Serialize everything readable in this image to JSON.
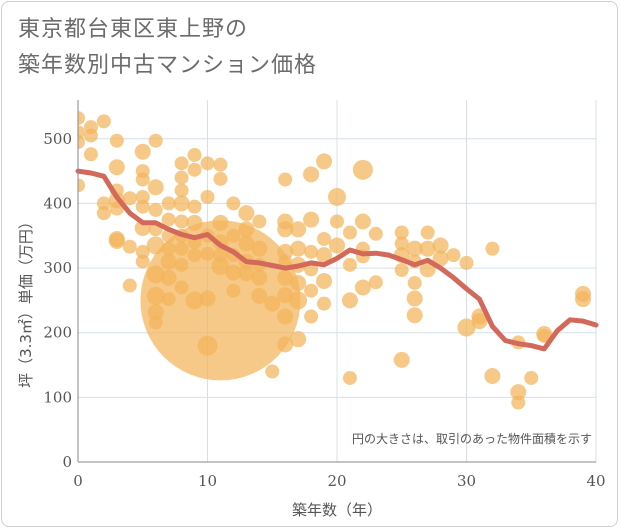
{
  "title": {
    "line1": "東京都台東区東上野の",
    "line2": "築年数別中古マンション価格"
  },
  "note": "円の大きさは、取引のあった物件面積を示す",
  "colors": {
    "bubble": "#f2b45a",
    "line": "#d2695a",
    "grid": "#d5e0ea",
    "axis": "#888888"
  },
  "chart_data": {
    "type": "scatter",
    "xlabel": "築年数（年）",
    "ylabel": "坪（3.3㎡）単価（万円）",
    "xlim": [
      0,
      40
    ],
    "ylim": [
      0,
      560
    ],
    "xticks": [
      0,
      10,
      20,
      30,
      40
    ],
    "yticks": [
      0,
      100,
      200,
      300,
      400,
      500
    ],
    "grid": true,
    "bubbles": [
      {
        "x": 0,
        "y": 532,
        "r": 7
      },
      {
        "x": 0,
        "y": 510,
        "r": 7
      },
      {
        "x": 0,
        "y": 495,
        "r": 7
      },
      {
        "x": 0,
        "y": 428,
        "r": 7
      },
      {
        "x": 1,
        "y": 518,
        "r": 7
      },
      {
        "x": 1,
        "y": 505,
        "r": 7
      },
      {
        "x": 1,
        "y": 476,
        "r": 7
      },
      {
        "x": 2,
        "y": 527,
        "r": 7
      },
      {
        "x": 2,
        "y": 400,
        "r": 7
      },
      {
        "x": 2,
        "y": 385,
        "r": 7
      },
      {
        "x": 3,
        "y": 497,
        "r": 7
      },
      {
        "x": 3,
        "y": 456,
        "r": 8
      },
      {
        "x": 3,
        "y": 420,
        "r": 7
      },
      {
        "x": 3,
        "y": 405,
        "r": 8
      },
      {
        "x": 3,
        "y": 392,
        "r": 7
      },
      {
        "x": 3,
        "y": 345,
        "r": 8
      },
      {
        "x": 3,
        "y": 342,
        "r": 8
      },
      {
        "x": 4,
        "y": 408,
        "r": 7
      },
      {
        "x": 4,
        "y": 333,
        "r": 7
      },
      {
        "x": 4,
        "y": 273,
        "r": 7
      },
      {
        "x": 5,
        "y": 480,
        "r": 8
      },
      {
        "x": 5,
        "y": 450,
        "r": 7
      },
      {
        "x": 5,
        "y": 437,
        "r": 7
      },
      {
        "x": 5,
        "y": 410,
        "r": 7
      },
      {
        "x": 5,
        "y": 395,
        "r": 7
      },
      {
        "x": 5,
        "y": 362,
        "r": 8
      },
      {
        "x": 5,
        "y": 325,
        "r": 7
      },
      {
        "x": 5,
        "y": 310,
        "r": 7
      },
      {
        "x": 6,
        "y": 497,
        "r": 7
      },
      {
        "x": 6,
        "y": 425,
        "r": 8
      },
      {
        "x": 6,
        "y": 390,
        "r": 7
      },
      {
        "x": 6,
        "y": 360,
        "r": 7
      },
      {
        "x": 6,
        "y": 335,
        "r": 9
      },
      {
        "x": 6,
        "y": 290,
        "r": 9
      },
      {
        "x": 6,
        "y": 257,
        "r": 9
      },
      {
        "x": 6,
        "y": 232,
        "r": 8
      },
      {
        "x": 6,
        "y": 216,
        "r": 7
      },
      {
        "x": 7,
        "y": 400,
        "r": 7
      },
      {
        "x": 7,
        "y": 375,
        "r": 7
      },
      {
        "x": 7,
        "y": 350,
        "r": 7
      },
      {
        "x": 7,
        "y": 330,
        "r": 7
      },
      {
        "x": 7,
        "y": 310,
        "r": 8
      },
      {
        "x": 7,
        "y": 285,
        "r": 8
      },
      {
        "x": 7,
        "y": 252,
        "r": 7
      },
      {
        "x": 8,
        "y": 462,
        "r": 7
      },
      {
        "x": 8,
        "y": 440,
        "r": 7
      },
      {
        "x": 8,
        "y": 420,
        "r": 7
      },
      {
        "x": 8,
        "y": 400,
        "r": 8
      },
      {
        "x": 8,
        "y": 372,
        "r": 7
      },
      {
        "x": 8,
        "y": 350,
        "r": 7
      },
      {
        "x": 8,
        "y": 330,
        "r": 7
      },
      {
        "x": 8,
        "y": 305,
        "r": 7
      },
      {
        "x": 8,
        "y": 270,
        "r": 7
      },
      {
        "x": 9,
        "y": 475,
        "r": 7
      },
      {
        "x": 9,
        "y": 452,
        "r": 7
      },
      {
        "x": 9,
        "y": 395,
        "r": 7
      },
      {
        "x": 9,
        "y": 370,
        "r": 8
      },
      {
        "x": 9,
        "y": 340,
        "r": 7
      },
      {
        "x": 9,
        "y": 320,
        "r": 7
      },
      {
        "x": 9,
        "y": 250,
        "r": 9
      },
      {
        "x": 10,
        "y": 462,
        "r": 7
      },
      {
        "x": 10,
        "y": 410,
        "r": 7
      },
      {
        "x": 10,
        "y": 350,
        "r": 7
      },
      {
        "x": 10,
        "y": 322,
        "r": 7
      },
      {
        "x": 10,
        "y": 253,
        "r": 8
      },
      {
        "x": 10,
        "y": 180,
        "r": 10
      },
      {
        "x": 11,
        "y": 460,
        "r": 7
      },
      {
        "x": 11,
        "y": 438,
        "r": 7
      },
      {
        "x": 11,
        "y": 370,
        "r": 8
      },
      {
        "x": 11,
        "y": 340,
        "r": 8
      },
      {
        "x": 11,
        "y": 320,
        "r": 7
      },
      {
        "x": 11,
        "y": 303,
        "r": 9
      },
      {
        "x": 11,
        "y": 250,
        "r": 80
      },
      {
        "x": 12,
        "y": 400,
        "r": 7
      },
      {
        "x": 12,
        "y": 350,
        "r": 7
      },
      {
        "x": 12,
        "y": 320,
        "r": 7
      },
      {
        "x": 12,
        "y": 293,
        "r": 8
      },
      {
        "x": 12,
        "y": 265,
        "r": 7
      },
      {
        "x": 13,
        "y": 385,
        "r": 8
      },
      {
        "x": 13,
        "y": 360,
        "r": 8
      },
      {
        "x": 13,
        "y": 338,
        "r": 8
      },
      {
        "x": 13,
        "y": 310,
        "r": 8
      },
      {
        "x": 13,
        "y": 292,
        "r": 8
      },
      {
        "x": 14,
        "y": 372,
        "r": 7
      },
      {
        "x": 14,
        "y": 330,
        "r": 8
      },
      {
        "x": 14,
        "y": 305,
        "r": 7
      },
      {
        "x": 14,
        "y": 285,
        "r": 8
      },
      {
        "x": 14,
        "y": 257,
        "r": 8
      },
      {
        "x": 15,
        "y": 245,
        "r": 8
      },
      {
        "x": 15,
        "y": 140,
        "r": 7
      },
      {
        "x": 16,
        "y": 437,
        "r": 7
      },
      {
        "x": 16,
        "y": 372,
        "r": 8
      },
      {
        "x": 16,
        "y": 360,
        "r": 8
      },
      {
        "x": 16,
        "y": 325,
        "r": 8
      },
      {
        "x": 16,
        "y": 310,
        "r": 7
      },
      {
        "x": 16,
        "y": 285,
        "r": 8
      },
      {
        "x": 16,
        "y": 258,
        "r": 8
      },
      {
        "x": 16,
        "y": 225,
        "r": 8
      },
      {
        "x": 16,
        "y": 182,
        "r": 8
      },
      {
        "x": 17,
        "y": 360,
        "r": 8
      },
      {
        "x": 17,
        "y": 330,
        "r": 8
      },
      {
        "x": 17,
        "y": 305,
        "r": 8
      },
      {
        "x": 17,
        "y": 277,
        "r": 8
      },
      {
        "x": 17,
        "y": 250,
        "r": 9
      },
      {
        "x": 17,
        "y": 190,
        "r": 8
      },
      {
        "x": 18,
        "y": 445,
        "r": 8
      },
      {
        "x": 18,
        "y": 375,
        "r": 8
      },
      {
        "x": 18,
        "y": 325,
        "r": 7
      },
      {
        "x": 18,
        "y": 298,
        "r": 7
      },
      {
        "x": 18,
        "y": 265,
        "r": 7
      },
      {
        "x": 18,
        "y": 225,
        "r": 7
      },
      {
        "x": 19,
        "y": 465,
        "r": 8
      },
      {
        "x": 19,
        "y": 345,
        "r": 7
      },
      {
        "x": 19,
        "y": 320,
        "r": 8
      },
      {
        "x": 19,
        "y": 280,
        "r": 8
      },
      {
        "x": 19,
        "y": 245,
        "r": 7
      },
      {
        "x": 20,
        "y": 410,
        "r": 9
      },
      {
        "x": 20,
        "y": 372,
        "r": 7
      },
      {
        "x": 20,
        "y": 335,
        "r": 8
      },
      {
        "x": 21,
        "y": 355,
        "r": 7
      },
      {
        "x": 21,
        "y": 305,
        "r": 7
      },
      {
        "x": 21,
        "y": 250,
        "r": 8
      },
      {
        "x": 21,
        "y": 130,
        "r": 7
      },
      {
        "x": 22,
        "y": 452,
        "r": 10
      },
      {
        "x": 22,
        "y": 372,
        "r": 8
      },
      {
        "x": 22,
        "y": 330,
        "r": 7
      },
      {
        "x": 22,
        "y": 318,
        "r": 7
      },
      {
        "x": 22,
        "y": 270,
        "r": 8
      },
      {
        "x": 23,
        "y": 353,
        "r": 7
      },
      {
        "x": 23,
        "y": 278,
        "r": 7
      },
      {
        "x": 25,
        "y": 355,
        "r": 7
      },
      {
        "x": 25,
        "y": 338,
        "r": 7
      },
      {
        "x": 25,
        "y": 320,
        "r": 8
      },
      {
        "x": 25,
        "y": 297,
        "r": 7
      },
      {
        "x": 25,
        "y": 158,
        "r": 8
      },
      {
        "x": 26,
        "y": 330,
        "r": 8
      },
      {
        "x": 26,
        "y": 310,
        "r": 7
      },
      {
        "x": 26,
        "y": 277,
        "r": 7
      },
      {
        "x": 26,
        "y": 253,
        "r": 8
      },
      {
        "x": 26,
        "y": 227,
        "r": 8
      },
      {
        "x": 27,
        "y": 355,
        "r": 7
      },
      {
        "x": 27,
        "y": 330,
        "r": 8
      },
      {
        "x": 27,
        "y": 298,
        "r": 8
      },
      {
        "x": 28,
        "y": 335,
        "r": 8
      },
      {
        "x": 28,
        "y": 315,
        "r": 8
      },
      {
        "x": 29,
        "y": 320,
        "r": 7
      },
      {
        "x": 30,
        "y": 308,
        "r": 7
      },
      {
        "x": 30,
        "y": 208,
        "r": 9
      },
      {
        "x": 31,
        "y": 225,
        "r": 8
      },
      {
        "x": 31,
        "y": 218,
        "r": 8
      },
      {
        "x": 32,
        "y": 330,
        "r": 7
      },
      {
        "x": 32,
        "y": 133,
        "r": 8
      },
      {
        "x": 34,
        "y": 185,
        "r": 7
      },
      {
        "x": 34,
        "y": 108,
        "r": 8
      },
      {
        "x": 34,
        "y": 92,
        "r": 7
      },
      {
        "x": 35,
        "y": 130,
        "r": 7
      },
      {
        "x": 36,
        "y": 198,
        "r": 8
      },
      {
        "x": 36,
        "y": 195,
        "r": 7
      },
      {
        "x": 39,
        "y": 260,
        "r": 8
      },
      {
        "x": 39,
        "y": 252,
        "r": 8
      }
    ],
    "trend": [
      {
        "x": 0,
        "y": 450
      },
      {
        "x": 1,
        "y": 447
      },
      {
        "x": 2,
        "y": 442
      },
      {
        "x": 3,
        "y": 410
      },
      {
        "x": 4,
        "y": 385
      },
      {
        "x": 5,
        "y": 370
      },
      {
        "x": 6,
        "y": 370
      },
      {
        "x": 7,
        "y": 360
      },
      {
        "x": 8,
        "y": 352
      },
      {
        "x": 9,
        "y": 347
      },
      {
        "x": 10,
        "y": 352
      },
      {
        "x": 11,
        "y": 335
      },
      {
        "x": 12,
        "y": 325
      },
      {
        "x": 13,
        "y": 310
      },
      {
        "x": 14,
        "y": 308
      },
      {
        "x": 15,
        "y": 304
      },
      {
        "x": 16,
        "y": 300
      },
      {
        "x": 17,
        "y": 303
      },
      {
        "x": 18,
        "y": 308
      },
      {
        "x": 19,
        "y": 305
      },
      {
        "x": 20,
        "y": 315
      },
      {
        "x": 21,
        "y": 328
      },
      {
        "x": 22,
        "y": 322
      },
      {
        "x": 23,
        "y": 323
      },
      {
        "x": 24,
        "y": 320
      },
      {
        "x": 25,
        "y": 313
      },
      {
        "x": 26,
        "y": 305
      },
      {
        "x": 27,
        "y": 312
      },
      {
        "x": 28,
        "y": 300
      },
      {
        "x": 29,
        "y": 285
      },
      {
        "x": 30,
        "y": 268
      },
      {
        "x": 31,
        "y": 252
      },
      {
        "x": 32,
        "y": 210
      },
      {
        "x": 33,
        "y": 188
      },
      {
        "x": 34,
        "y": 183
      },
      {
        "x": 35,
        "y": 180
      },
      {
        "x": 36,
        "y": 175
      },
      {
        "x": 37,
        "y": 203
      },
      {
        "x": 38,
        "y": 220
      },
      {
        "x": 39,
        "y": 218
      },
      {
        "x": 40,
        "y": 212
      }
    ]
  }
}
